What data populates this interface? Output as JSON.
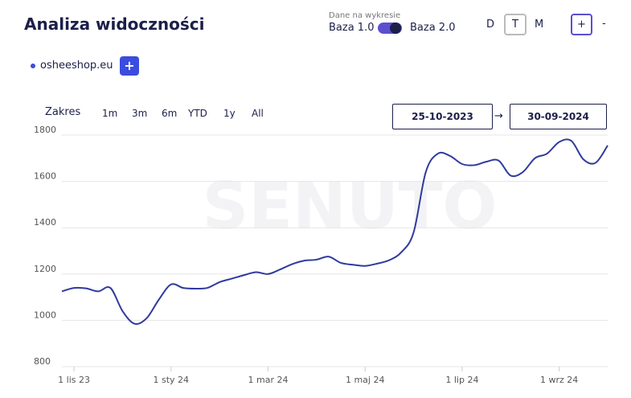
{
  "header": {
    "title": "Analiza widoczności",
    "toggle_caption": "Dane na wykresie",
    "toggle_left": "Baza 1.0",
    "toggle_right": "Baza 2.0",
    "periods": [
      "D",
      "T",
      "M"
    ],
    "zoom_in": "+",
    "zoom_out": "-"
  },
  "domain": {
    "name": "osheeshop.eu",
    "add": "+"
  },
  "range": {
    "label": "Zakres",
    "options": [
      "1m",
      "3m",
      "6m",
      "YTD",
      "1y",
      "All"
    ],
    "from": "25-10-2023",
    "arrow": "→",
    "to": "30-09-2024"
  },
  "watermark": "SENUTO",
  "chart_data": {
    "type": "line",
    "categories": [
      null,
      "1 lis 23",
      null,
      null,
      null,
      null,
      null,
      null,
      null,
      "1 sty 24",
      null,
      null,
      null,
      null,
      null,
      null,
      null,
      "1 mar 24",
      null,
      null,
      null,
      null,
      null,
      null,
      null,
      "1 maj 24",
      null,
      null,
      null,
      null,
      null,
      null,
      null,
      "1 lip 24",
      null,
      null,
      null,
      null,
      null,
      null,
      null,
      "1 wrz 24",
      null,
      null,
      null,
      null
    ],
    "series": [
      {
        "color": "#2f3a9e",
        "values": [
          1125,
          1140,
          1138,
          1125,
          1140,
          1040,
          985,
          1010,
          1090,
          1155,
          1140,
          1137,
          1140,
          1165,
          1180,
          1195,
          1208,
          1200,
          1220,
          1243,
          1258,
          1262,
          1275,
          1248,
          1240,
          1235,
          1245,
          1260,
          1295,
          1380,
          1640,
          1720,
          1710,
          1675,
          1670,
          1685,
          1690,
          1625,
          1640,
          1700,
          1720,
          1770,
          1775,
          1695,
          1680,
          1755
        ]
      }
    ],
    "ylim": [
      800,
      1800
    ],
    "yticks": [
      800,
      1000,
      1200,
      1400,
      1600,
      1800
    ],
    "grid": true
  }
}
